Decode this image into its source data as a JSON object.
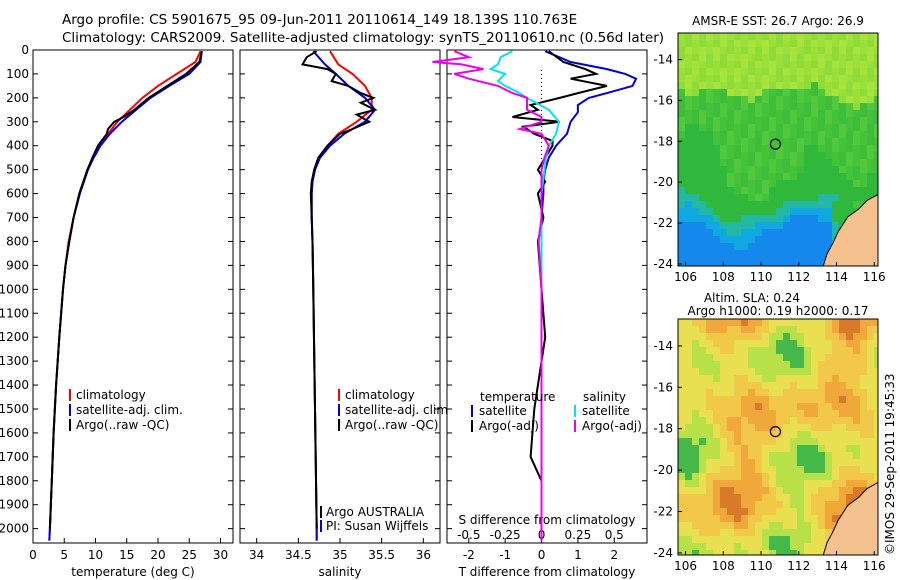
{
  "header": {
    "line1": "Argo profile: CS 5901675_95 09-Jun-2011 20110614_149 18.139S 110.763E",
    "line2": "Climatology: CARS2009. Satellite-adjusted climatology: synTS_20110610.nc (0.56d later)"
  },
  "colors": {
    "climatology": "#ff0000",
    "satellite": "#0000dd",
    "argo": "#000000",
    "salinity_sat": "#00e5ee",
    "salinity_argo": "#ee00ee",
    "land": "#f5c18f"
  },
  "chart_data": [
    {
      "type": "line",
      "id": "temperature",
      "xlabel": "temperature (deg C)",
      "ylabel": "",
      "xlim": [
        0,
        32
      ],
      "ylim": [
        2060,
        0
      ],
      "xticks": [
        "0",
        "5",
        "10",
        "15",
        "20",
        "25",
        "30"
      ],
      "yticks": [
        "0",
        "100",
        "200",
        "300",
        "400",
        "500",
        "600",
        "700",
        "800",
        "900",
        "1000",
        "1100",
        "1200",
        "1300",
        "1400",
        "1500",
        "1600",
        "1700",
        "1800",
        "1900",
        "2000"
      ],
      "legend": [
        "climatology",
        "satellite-adj. clim.",
        "Argo(..raw -QC)"
      ],
      "series": [
        {
          "name": "climatology",
          "depth": [
            5,
            50,
            100,
            150,
            200,
            250,
            300,
            350,
            400,
            450,
            500,
            600,
            700,
            800,
            900,
            1000,
            1200,
            1400,
            1600,
            1800,
            2000,
            2050
          ],
          "values": [
            26.8,
            26.0,
            23.0,
            20.0,
            17.5,
            15.5,
            13.5,
            12.0,
            10.6,
            9.6,
            8.7,
            7.4,
            6.5,
            5.7,
            5.2,
            4.8,
            4.2,
            3.7,
            3.3,
            3.0,
            2.7,
            2.6
          ]
        },
        {
          "name": "satellite-adj. clim.",
          "depth": [
            5,
            50,
            100,
            150,
            200,
            250,
            300,
            350,
            400,
            450,
            500,
            600,
            700,
            800,
            900,
            1000,
            1200,
            1400,
            1600,
            1800,
            2000,
            2050
          ],
          "values": [
            27.0,
            26.8,
            25.0,
            21.8,
            18.8,
            16.5,
            14.2,
            12.3,
            10.8,
            9.7,
            8.8,
            7.5,
            6.5,
            5.8,
            5.2,
            4.8,
            4.2,
            3.7,
            3.3,
            3.0,
            2.7,
            2.6
          ]
        },
        {
          "name": "Argo(..raw -QC)",
          "depth": [
            5,
            50,
            100,
            150,
            200,
            250,
            280,
            300,
            330,
            350,
            400,
            450,
            500,
            600,
            700,
            800,
            900,
            1000,
            1200,
            1400,
            1600,
            1800,
            2000
          ],
          "values": [
            27.0,
            26.6,
            24.5,
            21.5,
            18.5,
            16.2,
            14.5,
            13.0,
            12.0,
            11.8,
            10.4,
            9.5,
            8.7,
            7.4,
            6.5,
            5.8,
            5.2,
            4.8,
            4.2,
            3.7,
            3.3,
            3.0,
            2.7
          ]
        }
      ]
    },
    {
      "type": "line",
      "id": "salinity",
      "xlabel": "salinity",
      "xlim": [
        33.8,
        36.2
      ],
      "ylim": [
        2060,
        0
      ],
      "xticks": [
        "34",
        "34.5",
        "35",
        "35.5",
        "36"
      ],
      "legend": [
        "climatology",
        "satellite-adj. clim.",
        "Argo(..raw -QC)"
      ],
      "annotation": [
        "Argo AUSTRALIA",
        "PI: Susan Wijffels"
      ],
      "series": [
        {
          "name": "climatology",
          "depth": [
            5,
            60,
            100,
            150,
            200,
            250,
            300,
            350,
            400,
            450,
            500,
            550,
            600,
            700,
            800,
            1000,
            1500,
            2000,
            2050
          ],
          "values": [
            34.88,
            34.98,
            35.15,
            35.3,
            35.38,
            35.38,
            35.2,
            34.98,
            34.85,
            34.75,
            34.7,
            34.67,
            34.66,
            34.66,
            34.67,
            34.68,
            34.7,
            34.72,
            34.72
          ]
        },
        {
          "name": "satellite-adj. clim.",
          "depth": [
            5,
            60,
            100,
            150,
            200,
            250,
            300,
            350,
            400,
            450,
            500,
            550,
            600,
            700,
            800,
            1000,
            1500,
            2000,
            2050
          ],
          "values": [
            34.68,
            34.82,
            34.95,
            35.1,
            35.3,
            35.42,
            35.3,
            35.05,
            34.88,
            34.76,
            34.7,
            34.67,
            34.66,
            34.66,
            34.67,
            34.68,
            34.7,
            34.72,
            34.72
          ]
        },
        {
          "name": "Argo(..raw -QC)",
          "depth": [
            5,
            30,
            60,
            80,
            100,
            130,
            150,
            180,
            200,
            220,
            250,
            270,
            300,
            330,
            350,
            400,
            450,
            500,
            550,
            600,
            700,
            800,
            1000,
            1500,
            2000
          ],
          "values": [
            34.72,
            34.6,
            34.55,
            34.85,
            34.95,
            34.9,
            35.1,
            35.25,
            35.4,
            35.25,
            35.42,
            35.2,
            35.35,
            35.15,
            35.0,
            34.85,
            34.74,
            34.69,
            34.66,
            34.65,
            34.66,
            34.67,
            34.68,
            34.7,
            34.72
          ]
        }
      ]
    },
    {
      "type": "line",
      "id": "differences",
      "xlabel": "T difference from climatology",
      "xlabel_top": "S difference from climatology",
      "xlim": [
        -2.6,
        2.9
      ],
      "ylim": [
        2060,
        0
      ],
      "xticks": [
        "-2",
        "-1",
        "0",
        "1",
        "2"
      ],
      "xticks_s": [
        "-0.5",
        "-0.25",
        "0",
        "0.25",
        "0.5"
      ],
      "legend_headers": [
        "temperature",
        "salinity"
      ],
      "legend": [
        "satellite",
        "Argo(-adj)",
        "satellite",
        "Argo(-adj)"
      ],
      "series": [
        {
          "name": "T satellite",
          "depth": [
            5,
            50,
            80,
            100,
            120,
            150,
            180,
            200,
            230,
            260,
            300,
            350,
            400,
            450,
            500,
            550,
            600,
            700,
            900,
            1200,
            1500,
            1800,
            2050
          ],
          "values": [
            0.1,
            0.8,
            1.8,
            2.3,
            2.6,
            2.5,
            1.8,
            1.3,
            1.0,
            1.0,
            0.8,
            0.7,
            0.4,
            0.2,
            0.1,
            0.05,
            0.05,
            0.0,
            0.0,
            0.0,
            0.0,
            0.0,
            0.0
          ]
        },
        {
          "name": "T Argo(-adj)",
          "depth": [
            5,
            50,
            80,
            100,
            120,
            150,
            180,
            200,
            230,
            250,
            280,
            300,
            320,
            350,
            380,
            400,
            450,
            500,
            550,
            600,
            700,
            800,
            1000,
            1200,
            1500,
            1700,
            1800,
            2000
          ],
          "values": [
            0.2,
            0.6,
            1.2,
            1.5,
            0.8,
            1.8,
            1.0,
            0.5,
            -0.3,
            -0.1,
            -0.8,
            0.5,
            -0.5,
            -0.2,
            0.3,
            0.3,
            0.1,
            -0.1,
            0.1,
            -0.1,
            0.05,
            -0.1,
            0.0,
            0.1,
            -0.2,
            -0.3,
            0.0,
            0.0
          ]
        },
        {
          "name": "S satellite",
          "depth": [
            5,
            30,
            60,
            80,
            100,
            130,
            150,
            180,
            200,
            250,
            300,
            350,
            400,
            450,
            500,
            600,
            800,
            1000,
            1500,
            2050
          ],
          "values": [
            -0.2,
            -0.28,
            -0.3,
            -0.35,
            -0.25,
            -0.3,
            -0.25,
            -0.15,
            -0.1,
            0.05,
            0.12,
            0.1,
            0.05,
            0.03,
            0.02,
            0.0,
            0.0,
            0.0,
            0.0,
            0.0
          ]
        },
        {
          "name": "S Argo(-adj)",
          "depth": [
            5,
            30,
            50,
            60,
            80,
            100,
            120,
            150,
            180,
            200,
            250,
            280,
            300,
            330,
            350,
            400,
            450,
            500,
            600,
            700,
            800,
            1000,
            1500,
            2050
          ],
          "values": [
            -0.6,
            -0.5,
            -0.75,
            -0.55,
            -0.4,
            -0.6,
            -0.5,
            -0.3,
            -0.2,
            -0.1,
            -0.1,
            0.0,
            0.0,
            -0.15,
            0.0,
            0.05,
            0.02,
            0.0,
            0.0,
            0.0,
            -0.02,
            0.0,
            0.0,
            0.0
          ]
        }
      ]
    },
    {
      "type": "heatmap",
      "id": "sst_map",
      "title": "AMSR-E SST: 26.7 Argo: 26.9",
      "xlim": [
        105.6,
        116.2
      ],
      "ylim": [
        -24.1,
        -12.7
      ],
      "xticks": [
        "106",
        "108",
        "110",
        "112",
        "114",
        "116"
      ],
      "yticks": [
        "-14",
        "-16",
        "-18",
        "-20",
        "-22",
        "-24"
      ],
      "marker": {
        "lon": 110.763,
        "lat": -18.139
      }
    },
    {
      "type": "heatmap",
      "id": "sla_map",
      "title": "Altim. SLA: 0.24",
      "subtitle": "Argo h1000: 0.19 h2000: 0.17",
      "xlim": [
        105.6,
        116.2
      ],
      "ylim": [
        -24.1,
        -12.7
      ],
      "xticks": [
        "106",
        "108",
        "110",
        "112",
        "114",
        "116"
      ],
      "yticks": [
        "-14",
        "-16",
        "-18",
        "-20",
        "-22",
        "-24"
      ],
      "marker": {
        "lon": 110.763,
        "lat": -18.139
      }
    }
  ],
  "credit": "©IMOS 29-Sep-2011 19:45:33"
}
